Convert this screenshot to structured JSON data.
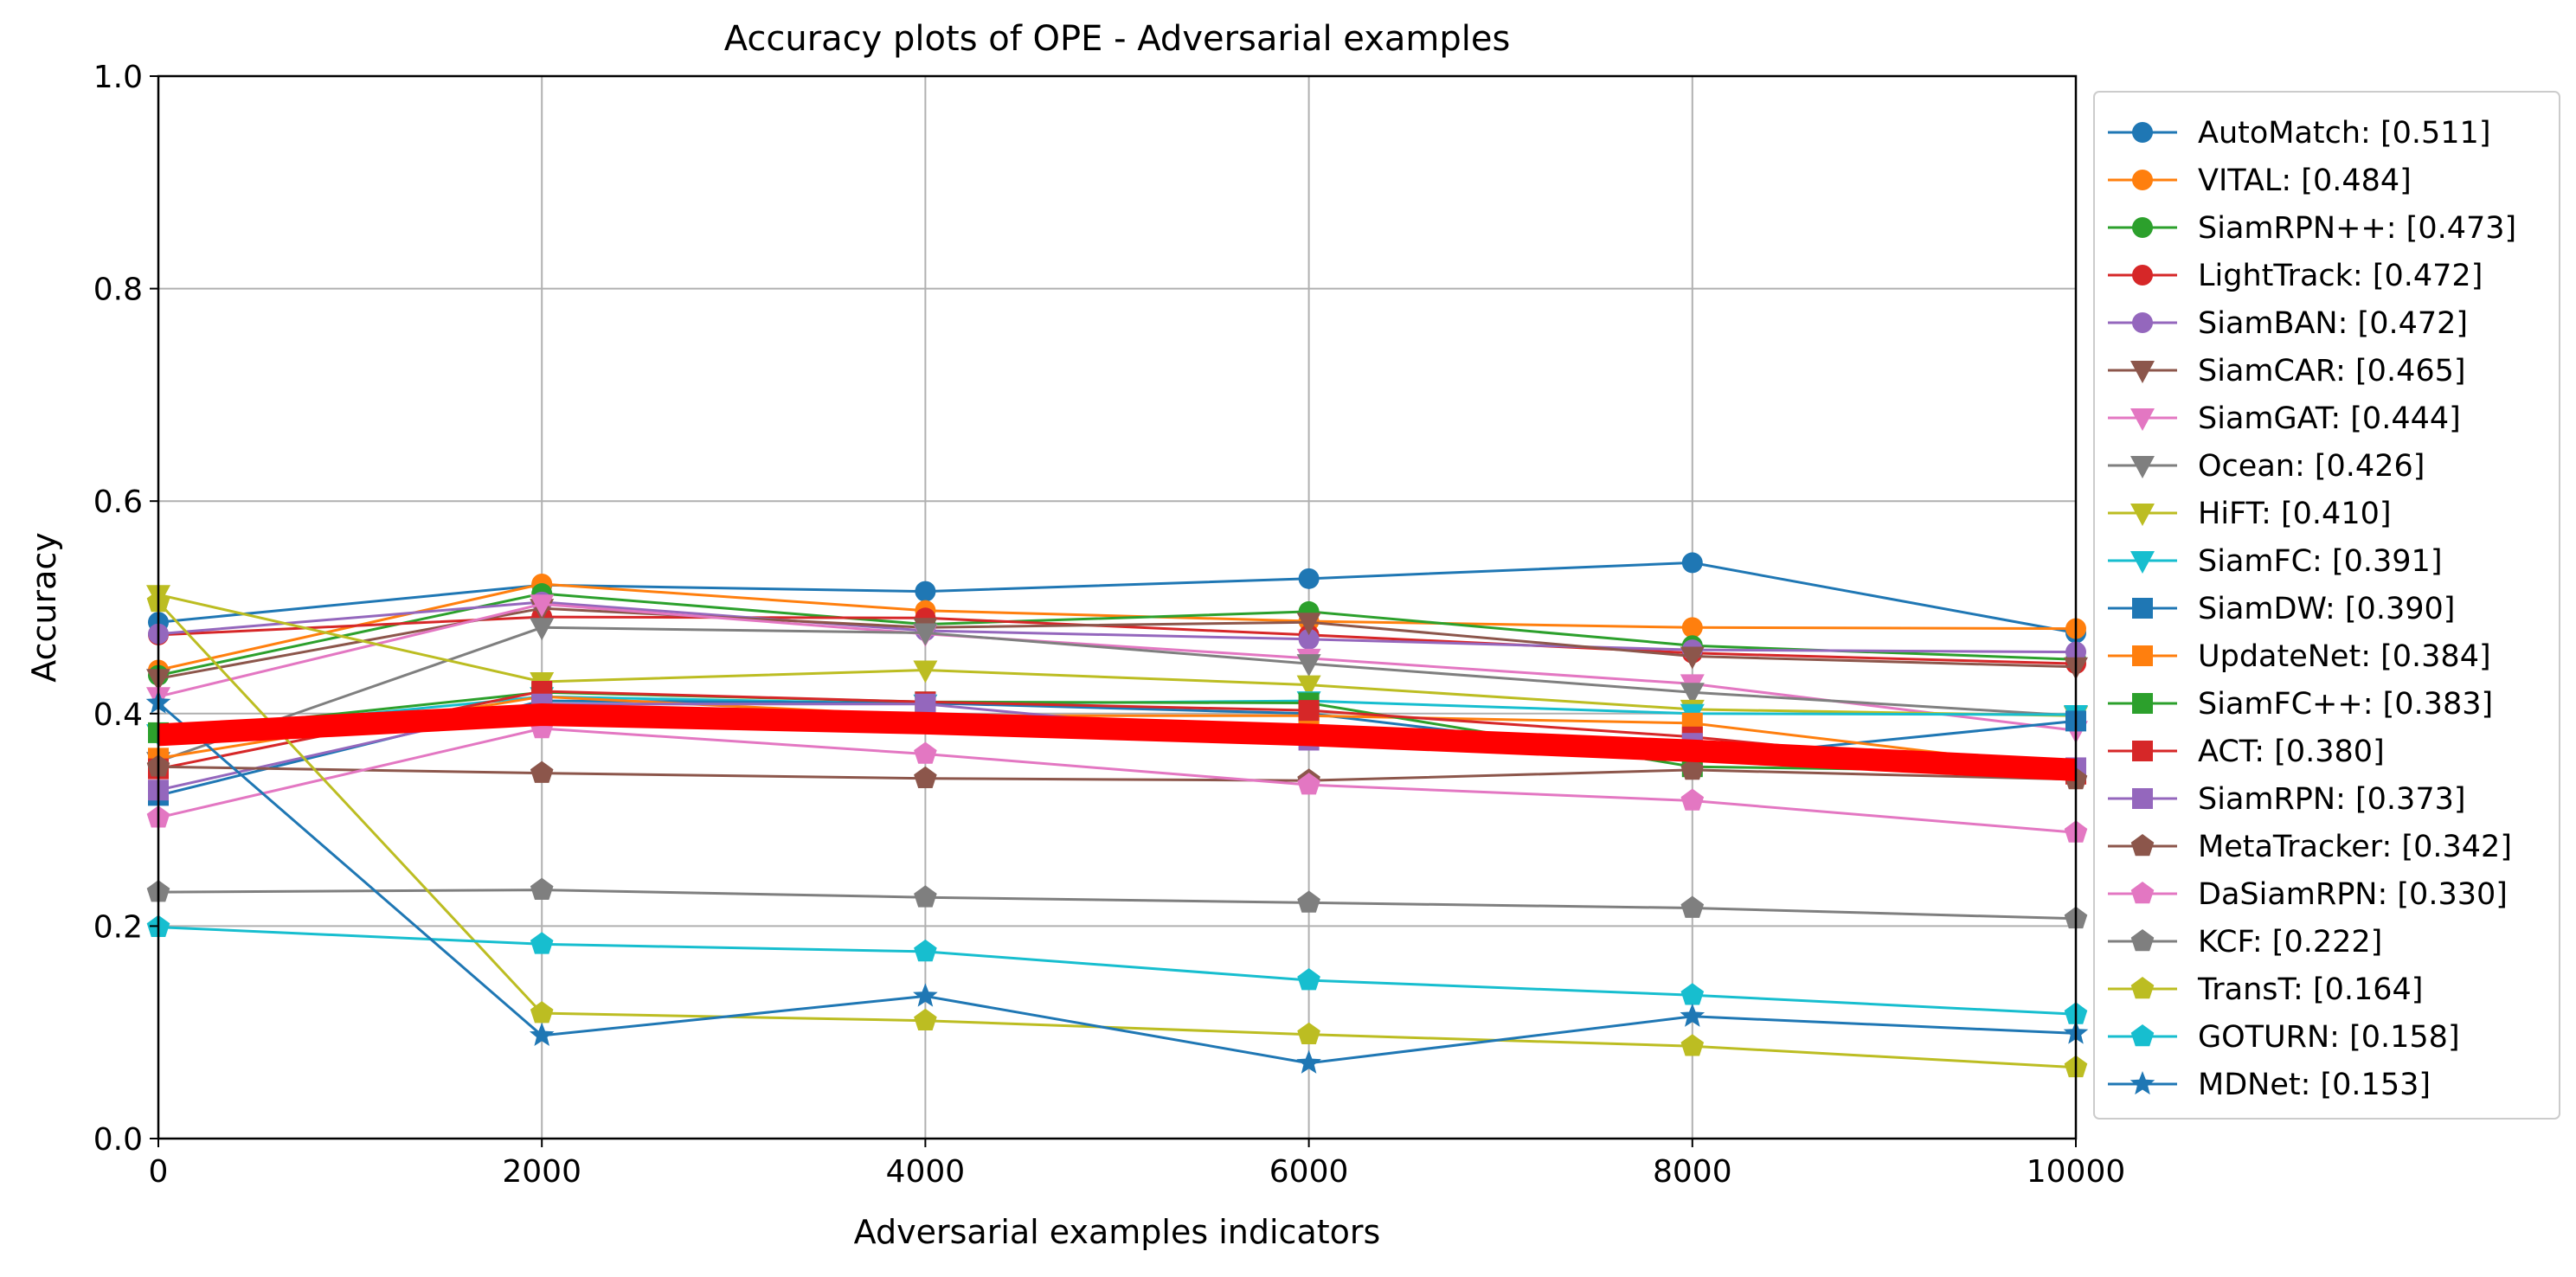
{
  "chart_data": {
    "type": "line",
    "title": "Accuracy plots of OPE - Adversarial examples",
    "xlabel": "Adversarial examples indicators",
    "ylabel": "Accuracy",
    "xlim": [
      0,
      10000
    ],
    "ylim": [
      0,
      1.0
    ],
    "x": [
      0,
      2000,
      4000,
      6000,
      8000,
      10000
    ],
    "xticks": [
      "0",
      "2000",
      "4000",
      "6000",
      "8000",
      "10000"
    ],
    "yticks": [
      "0.0",
      "0.2",
      "0.4",
      "0.6",
      "0.8",
      "1.0"
    ],
    "grid": true,
    "legend_position": "outside-right",
    "series": [
      {
        "name": "AutoMatch: [0.511]",
        "color": "#1f77b4",
        "marker": "circle",
        "values": [
          0.486,
          0.521,
          0.515,
          0.527,
          0.542,
          0.476
        ]
      },
      {
        "name": "VITAL: [0.484]",
        "color": "#ff7f0e",
        "marker": "circle",
        "values": [
          0.441,
          0.522,
          0.497,
          0.487,
          0.481,
          0.48
        ]
      },
      {
        "name": "SiamRPN++: [0.473]",
        "color": "#2ca02c",
        "marker": "circle",
        "values": [
          0.436,
          0.513,
          0.484,
          0.496,
          0.464,
          0.451
        ]
      },
      {
        "name": "LightTrack: [0.472]",
        "color": "#d62728",
        "marker": "circle",
        "values": [
          0.474,
          0.491,
          0.49,
          0.474,
          0.457,
          0.447
        ]
      },
      {
        "name": "SiamBAN: [0.472]",
        "color": "#9467bd",
        "marker": "circle",
        "values": [
          0.475,
          0.505,
          0.478,
          0.47,
          0.46,
          0.458
        ]
      },
      {
        "name": "SiamCAR: [0.465]",
        "color": "#8c564b",
        "marker": "triangle-down",
        "values": [
          0.433,
          0.499,
          0.481,
          0.486,
          0.454,
          0.444
        ]
      },
      {
        "name": "SiamGAT: [0.444]",
        "color": "#e377c2",
        "marker": "triangle-down",
        "values": [
          0.416,
          0.503,
          0.475,
          0.452,
          0.428,
          0.384
        ]
      },
      {
        "name": "Ocean: [0.426]",
        "color": "#7f7f7f",
        "marker": "triangle-down",
        "values": [
          0.355,
          0.481,
          0.476,
          0.447,
          0.42,
          0.398
        ]
      },
      {
        "name": "HiFT: [0.410]",
        "color": "#bcbd22",
        "marker": "triangle-down",
        "values": [
          0.512,
          0.43,
          0.441,
          0.427,
          0.404,
          0.398
        ]
      },
      {
        "name": "SiamFC: [0.391]",
        "color": "#17becf",
        "marker": "triangle-down",
        "values": [
          0.381,
          0.416,
          0.409,
          0.412,
          0.4,
          0.399
        ]
      },
      {
        "name": "SiamDW: [0.390]",
        "color": "#1f77b4",
        "marker": "square",
        "values": [
          0.323,
          0.412,
          0.41,
          0.4,
          0.357,
          0.393
        ]
      },
      {
        "name": "UpdateNet: [0.384]",
        "color": "#ff7f0e",
        "marker": "square",
        "values": [
          0.358,
          0.416,
          0.398,
          0.398,
          0.391,
          0.348
        ]
      },
      {
        "name": "SiamFC++: [0.383]",
        "color": "#2ca02c",
        "marker": "square",
        "values": [
          0.382,
          0.42,
          0.411,
          0.41,
          0.35,
          0.345
        ]
      },
      {
        "name": "ACT: [0.380]",
        "color": "#d62728",
        "marker": "square",
        "values": [
          0.348,
          0.421,
          0.411,
          0.403,
          0.378,
          0.343
        ]
      },
      {
        "name": "SiamRPN: [0.373]",
        "color": "#9467bd",
        "marker": "square",
        "values": [
          0.328,
          0.409,
          0.409,
          0.375,
          0.372,
          0.349
        ]
      },
      {
        "name": "MetaTracker: [0.342]",
        "color": "#8c564b",
        "marker": "pentagon",
        "values": [
          0.35,
          0.344,
          0.339,
          0.337,
          0.347,
          0.338
        ]
      },
      {
        "name": "DaSiamRPN: [0.330]",
        "color": "#e377c2",
        "marker": "pentagon",
        "values": [
          0.302,
          0.386,
          0.362,
          0.333,
          0.318,
          0.288
        ]
      },
      {
        "name": "KCF: [0.222]",
        "color": "#7f7f7f",
        "marker": "pentagon",
        "values": [
          0.232,
          0.234,
          0.227,
          0.222,
          0.217,
          0.207
        ]
      },
      {
        "name": "TransT: [0.164]",
        "color": "#bcbd22",
        "marker": "pentagon",
        "values": [
          0.505,
          0.118,
          0.111,
          0.098,
          0.087,
          0.067
        ]
      },
      {
        "name": "GOTURN: [0.158]",
        "color": "#17becf",
        "marker": "pentagon",
        "values": [
          0.199,
          0.183,
          0.176,
          0.149,
          0.135,
          0.117
        ]
      },
      {
        "name": "MDNet: [0.153]",
        "color": "#1f77b4",
        "marker": "star",
        "values": [
          0.41,
          0.097,
          0.134,
          0.071,
          0.115,
          0.099
        ]
      }
    ],
    "highlight": {
      "color": "#ff0000",
      "values": [
        0.38,
        0.399,
        0.391,
        0.38,
        0.365,
        0.347
      ]
    }
  }
}
